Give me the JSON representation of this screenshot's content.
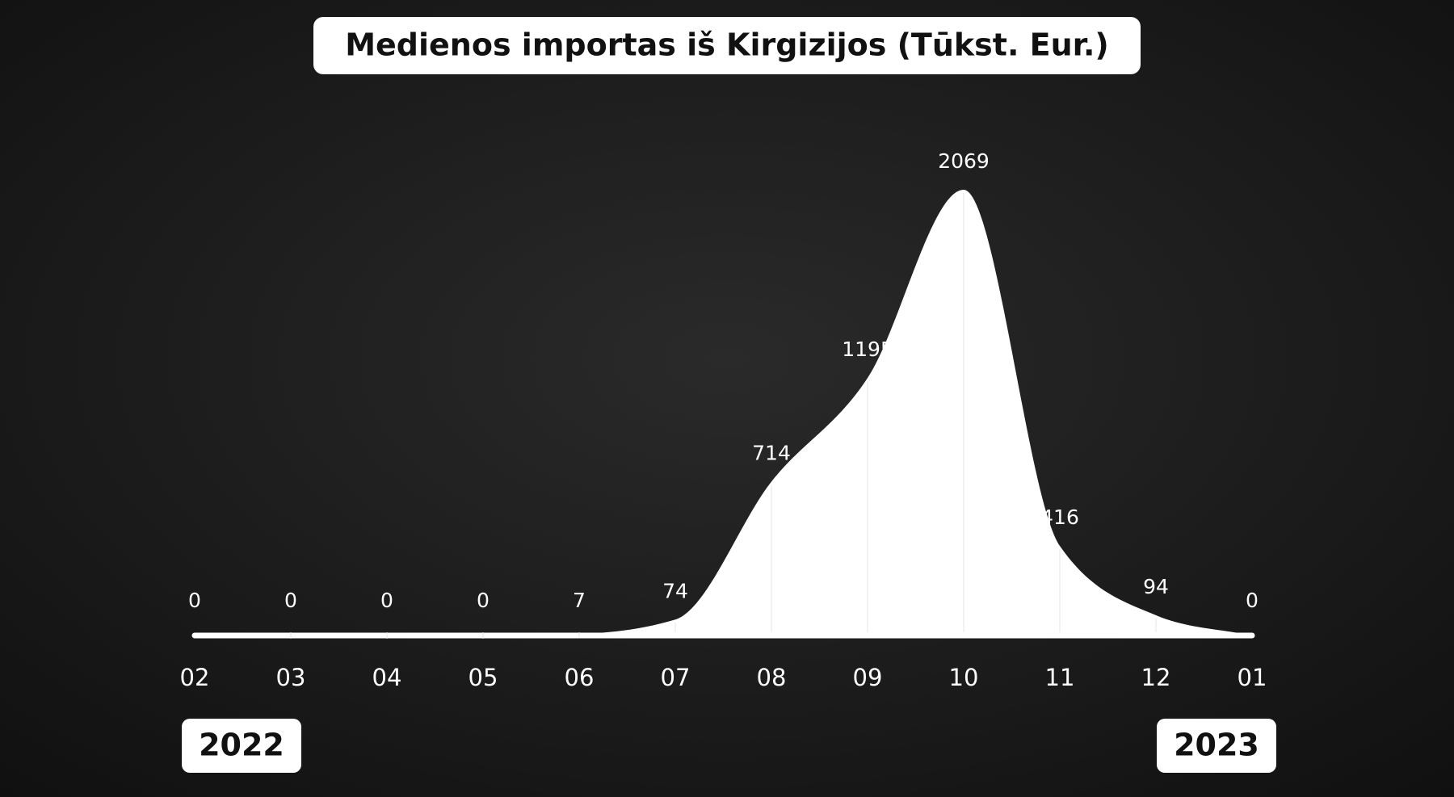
{
  "chart_data": {
    "type": "area",
    "title": "Medienos importas iš Kirgizijos (Tūkst. Eur.)",
    "categories": [
      "02",
      "03",
      "04",
      "05",
      "06",
      "07",
      "08",
      "09",
      "10",
      "11",
      "12",
      "01"
    ],
    "values": [
      0,
      0,
      0,
      0,
      7,
      74,
      714,
      1195,
      2069,
      416,
      94,
      0
    ],
    "color": "#ffffff",
    "annotations": [
      "2022",
      "2023"
    ]
  }
}
